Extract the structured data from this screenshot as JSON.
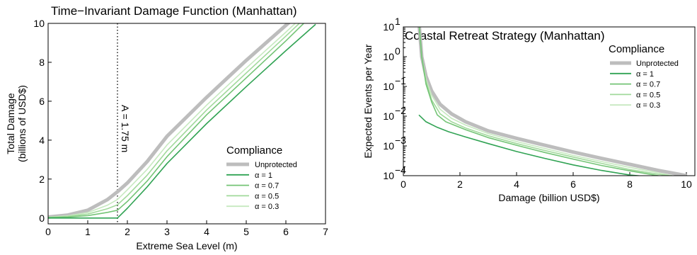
{
  "chart_data": [
    {
      "type": "line",
      "title": "Time−Invariant Damage Function (Manhattan)",
      "xlabel": "Extreme Sea Level (m)",
      "ylabel_lines": [
        "Total Damage",
        "(billions of USD$)"
      ],
      "xlim": [
        0,
        7
      ],
      "ylim": [
        -0.3,
        10
      ],
      "xticks": [
        0,
        1,
        2,
        3,
        4,
        5,
        6,
        7
      ],
      "yticks": [
        0,
        2,
        4,
        6,
        8,
        10
      ],
      "annotation": {
        "text": "A = 1.75 m",
        "x": 1.75
      },
      "legend": {
        "title": "Compliance",
        "position": "lower-right"
      },
      "series": [
        {
          "name": "Unprotected",
          "color": "#bdbdbd",
          "x": [
            0,
            0.5,
            1.0,
            1.5,
            1.75,
            2.0,
            2.5,
            3.0,
            4.0,
            5.0,
            6.0,
            6.5
          ],
          "y": [
            0.05,
            0.15,
            0.4,
            0.95,
            1.35,
            1.8,
            2.9,
            4.2,
            6.2,
            8.1,
            9.9,
            10.8
          ]
        },
        {
          "name": "α = 0.3",
          "color": "#c7e9c0",
          "x": [
            0,
            0.5,
            1.0,
            1.5,
            1.75,
            2.0,
            2.5,
            3.0,
            4.0,
            5.0,
            6.0,
            6.6
          ],
          "y": [
            0.04,
            0.11,
            0.28,
            0.66,
            0.95,
            1.45,
            2.5,
            3.75,
            5.8,
            7.7,
            9.55,
            10.7
          ]
        },
        {
          "name": "α = 0.5",
          "color": "#a1d99b",
          "x": [
            0,
            0.5,
            1.0,
            1.5,
            1.75,
            2.0,
            2.5,
            3.0,
            4.0,
            5.0,
            6.0,
            6.6
          ],
          "y": [
            0.03,
            0.08,
            0.2,
            0.48,
            0.68,
            1.15,
            2.2,
            3.45,
            5.55,
            7.45,
            9.35,
            10.5
          ]
        },
        {
          "name": "α = 0.7",
          "color": "#74c476",
          "x": [
            0,
            0.5,
            1.0,
            1.5,
            1.75,
            2.0,
            2.5,
            3.0,
            4.0,
            5.0,
            6.0,
            6.7
          ],
          "y": [
            0.02,
            0.05,
            0.12,
            0.29,
            0.4,
            0.85,
            1.9,
            3.15,
            5.3,
            7.2,
            9.1,
            10.5
          ]
        },
        {
          "name": "α = 1",
          "color": "#31a354",
          "x": [
            0,
            1.75,
            2.0,
            2.5,
            3.0,
            4.0,
            5.0,
            6.0,
            6.75
          ],
          "y": [
            0,
            0,
            0.5,
            1.6,
            2.8,
            4.85,
            6.75,
            8.6,
            9.95
          ]
        }
      ]
    },
    {
      "type": "line",
      "title": "Coastal Retreat Strategy (Manhattan)",
      "xlabel": "Damage (billion USD$)",
      "ylabel": "Expected Events per Year",
      "xlim": [
        0,
        10.3
      ],
      "ylim_exp": [
        -4,
        1
      ],
      "yscale": "log",
      "xticks": [
        0,
        2,
        4,
        6,
        8,
        10
      ],
      "yticks_exp": [
        -4,
        -3,
        -2,
        -1,
        0,
        1
      ],
      "legend": {
        "title": "Compliance",
        "position": "upper-right"
      },
      "series": [
        {
          "name": "Unprotected",
          "color": "#bdbdbd",
          "x": [
            0.55,
            0.65,
            0.8,
            1.0,
            1.3,
            1.7,
            2.2,
            3.0,
            4.0,
            5.0,
            6.0,
            7.0,
            8.0,
            9.0,
            10.0
          ],
          "y": [
            15,
            1.0,
            0.22,
            0.07,
            0.025,
            0.012,
            0.0065,
            0.0032,
            0.0018,
            0.00105,
            0.00062,
            0.00038,
            0.00024,
            0.00015,
            0.0001
          ]
        },
        {
          "name": "α = 0.3",
          "color": "#c7e9c0",
          "x": [
            0.55,
            0.65,
            0.8,
            1.0,
            1.3,
            1.7,
            2.2,
            3.0,
            4.0,
            5.0,
            6.0,
            7.0,
            8.0,
            9.0,
            9.5
          ],
          "y": [
            15,
            1.0,
            0.18,
            0.05,
            0.017,
            0.0085,
            0.005,
            0.0026,
            0.0014,
            0.00082,
            0.00048,
            0.0003,
            0.00019,
            0.000125,
            0.0001
          ]
        },
        {
          "name": "α = 0.5",
          "color": "#a1d99b",
          "x": [
            0.55,
            0.65,
            0.8,
            1.0,
            1.3,
            1.7,
            2.2,
            3.0,
            4.0,
            5.0,
            6.0,
            7.0,
            8.0,
            9.0,
            9.4
          ],
          "y": [
            15,
            1.0,
            0.15,
            0.035,
            0.012,
            0.0065,
            0.004,
            0.0022,
            0.0012,
            0.0007,
            0.00042,
            0.00026,
            0.00016,
            0.000112,
            0.0001
          ]
        },
        {
          "name": "α = 0.7",
          "color": "#74c476",
          "x": [
            0.55,
            0.65,
            0.8,
            1.0,
            1.2,
            1.5,
            2.2,
            3.0,
            4.0,
            5.0,
            6.0,
            7.0,
            8.0,
            9.0,
            9.3
          ],
          "y": [
            15,
            1.0,
            0.12,
            0.03,
            0.011,
            0.0065,
            0.0035,
            0.0019,
            0.00105,
            0.0006,
            0.00036,
            0.00022,
            0.000145,
            0.0001,
            9e-05
          ]
        },
        {
          "name": "α = 1",
          "color": "#31a354",
          "x": [
            0.55,
            0.8,
            1.2,
            1.6,
            2.2,
            3.0,
            4.0,
            5.0,
            6.0,
            7.0,
            8.0,
            8.8
          ],
          "y": [
            0.011,
            0.0065,
            0.0042,
            0.003,
            0.002,
            0.0012,
            0.00065,
            0.00038,
            0.00023,
            0.00015,
            0.000105,
            9e-05
          ]
        }
      ]
    }
  ]
}
